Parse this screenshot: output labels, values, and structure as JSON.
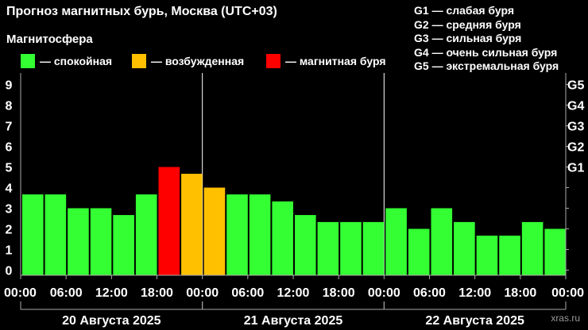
{
  "title": "Прогноз магнитных бурь, Москва (UTC+03)",
  "subtitle": "Магнитосфера",
  "legend": [
    {
      "label": "— спокойная",
      "color": "#33ff33"
    },
    {
      "label": "— возбужденная",
      "color": "#ffc000"
    },
    {
      "label": "— магнитная буря",
      "color": "#ff0000"
    }
  ],
  "g_scale": [
    "G1 — слабая буря",
    "G2 — средняя буря",
    "G3 — сильная буря",
    "G4 — очень сильная буря",
    "G5 — экстремальная буря"
  ],
  "watermark": "xras.ru",
  "chart_data": {
    "type": "bar",
    "ylim": [
      0,
      9
    ],
    "y_ticks": [
      "0",
      "1",
      "2",
      "3",
      "4",
      "5",
      "6",
      "7",
      "8",
      "9"
    ],
    "right_ticks": [
      {
        "value": 5,
        "label": "G1"
      },
      {
        "value": 6,
        "label": "G2"
      },
      {
        "value": 7,
        "label": "G3"
      },
      {
        "value": 8,
        "label": "G4"
      },
      {
        "value": 9,
        "label": "G5"
      }
    ],
    "x_tick_labels": [
      "00:00",
      "06:00",
      "12:00",
      "18:00",
      "00:00",
      "06:00",
      "12:00",
      "18:00",
      "00:00",
      "06:00",
      "12:00",
      "18:00",
      "00:00"
    ],
    "days": [
      "20 Августа 2025",
      "21 Августа 2025",
      "22 Августа 2025"
    ],
    "interval_hours": 3,
    "values": [
      3.67,
      3.67,
      3.0,
      3.0,
      2.67,
      3.67,
      5.0,
      4.67,
      4.0,
      3.67,
      3.67,
      3.33,
      2.67,
      2.33,
      2.33,
      2.33,
      3.0,
      2.0,
      3.0,
      2.33,
      1.67,
      1.67,
      2.33,
      2.0
    ],
    "levels": [
      "quiet",
      "quiet",
      "quiet",
      "quiet",
      "quiet",
      "quiet",
      "storm",
      "active",
      "active",
      "quiet",
      "quiet",
      "quiet",
      "quiet",
      "quiet",
      "quiet",
      "quiet",
      "quiet",
      "quiet",
      "quiet",
      "quiet",
      "quiet",
      "quiet",
      "quiet",
      "quiet"
    ],
    "colors": {
      "quiet": "#33ff33",
      "active": "#ffc000",
      "storm": "#ff0000"
    }
  }
}
